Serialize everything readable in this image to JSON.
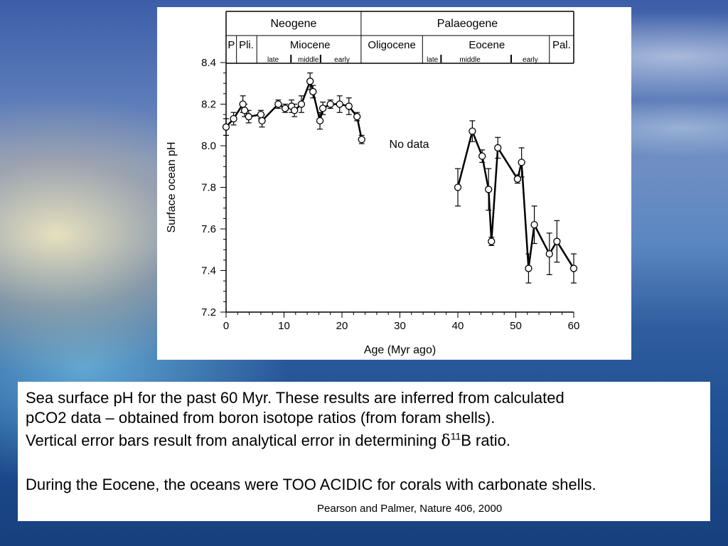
{
  "chart_data": {
    "type": "line",
    "xlabel": "Age (Myr ago)",
    "ylabel": "Surface ocean pH",
    "xlim": [
      0,
      60
    ],
    "ylim": [
      7.2,
      8.4
    ],
    "xticks": [
      "0",
      "10",
      "20",
      "30",
      "40",
      "50",
      "60"
    ],
    "yticks": [
      "7.2",
      "7.4",
      "7.6",
      "7.8",
      "8.0",
      "8.2",
      "8.4"
    ],
    "annotation": "No data",
    "grid": false,
    "epochs_top": [
      "Neogene",
      "Palaeogene"
    ],
    "epochs_mid": [
      "P",
      "Pli.",
      "Miocene",
      "Oligocene",
      "Eocene",
      "Pal."
    ],
    "epochs_sub": [
      "late",
      "middle",
      "early",
      "late",
      "middle",
      "early"
    ],
    "series": [
      {
        "points": [
          {
            "x": 0.0,
            "y": 8.09,
            "yerr": 0.04
          },
          {
            "x": 1.3,
            "y": 8.13,
            "yerr": 0.03
          },
          {
            "x": 2.9,
            "y": 8.2,
            "yerr": 0.04
          },
          {
            "x": 3.2,
            "y": 8.17,
            "yerr": 0.03
          },
          {
            "x": 3.9,
            "y": 8.14,
            "yerr": 0.03
          },
          {
            "x": 6.0,
            "y": 8.15,
            "yerr": 0.02
          },
          {
            "x": 6.2,
            "y": 8.12,
            "yerr": 0.03
          },
          {
            "x": 9.0,
            "y": 8.2,
            "yerr": 0.02
          },
          {
            "x": 10.2,
            "y": 8.18,
            "yerr": 0.02
          },
          {
            "x": 11.3,
            "y": 8.19,
            "yerr": 0.03
          },
          {
            "x": 11.8,
            "y": 8.17,
            "yerr": 0.03
          },
          {
            "x": 13.0,
            "y": 8.2,
            "yerr": 0.04
          },
          {
            "x": 14.5,
            "y": 8.31,
            "yerr": 0.04
          },
          {
            "x": 15.0,
            "y": 8.26,
            "yerr": 0.03
          },
          {
            "x": 16.2,
            "y": 8.12,
            "yerr": 0.04
          },
          {
            "x": 16.7,
            "y": 8.18,
            "yerr": 0.03
          },
          {
            "x": 18.0,
            "y": 8.2,
            "yerr": 0.02
          },
          {
            "x": 19.6,
            "y": 8.2,
            "yerr": 0.04
          },
          {
            "x": 21.2,
            "y": 8.19,
            "yerr": 0.04
          },
          {
            "x": 22.6,
            "y": 8.14,
            "yerr": 0.02
          },
          {
            "x": 23.4,
            "y": 8.03,
            "yerr": 0.02
          },
          {
            "x": 40.0,
            "y": 7.8,
            "yerr": 0.09
          },
          {
            "x": 42.5,
            "y": 8.07,
            "yerr": 0.05
          },
          {
            "x": 44.2,
            "y": 7.95,
            "yerr": 0.03
          },
          {
            "x": 45.3,
            "y": 7.79,
            "yerr": 0.1
          },
          {
            "x": 45.8,
            "y": 7.54,
            "yerr": 0.02
          },
          {
            "x": 46.9,
            "y": 7.99,
            "yerr": 0.05
          },
          {
            "x": 50.3,
            "y": 7.84,
            "yerr": 0.02
          },
          {
            "x": 51.0,
            "y": 7.92,
            "yerr": 0.07
          },
          {
            "x": 52.2,
            "y": 7.41,
            "yerr": 0.07
          },
          {
            "x": 53.2,
            "y": 7.62,
            "yerr": 0.09
          },
          {
            "x": 55.8,
            "y": 7.48,
            "yerr": 0.1
          },
          {
            "x": 57.1,
            "y": 7.54,
            "yerr": 0.1
          },
          {
            "x": 60.0,
            "y": 7.41,
            "yerr": 0.07
          }
        ]
      }
    ]
  },
  "caption": {
    "line1": "Sea surface pH for the past 60 Myr.  These results are inferred from calculated",
    "line2": "pCO2 data – obtained from boron isotope ratios (from foram shells).",
    "line3_prefix": "Vertical error bars result from analytical error in determining ",
    "line3_delta": "δ",
    "line3_sup": "11",
    "line3_suffix": "B ratio.",
    "line4": "During the Eocene, the oceans were TOO ACIDIC for corals with carbonate shells.",
    "citation": "Pearson and Palmer, Nature 406, 2000"
  }
}
